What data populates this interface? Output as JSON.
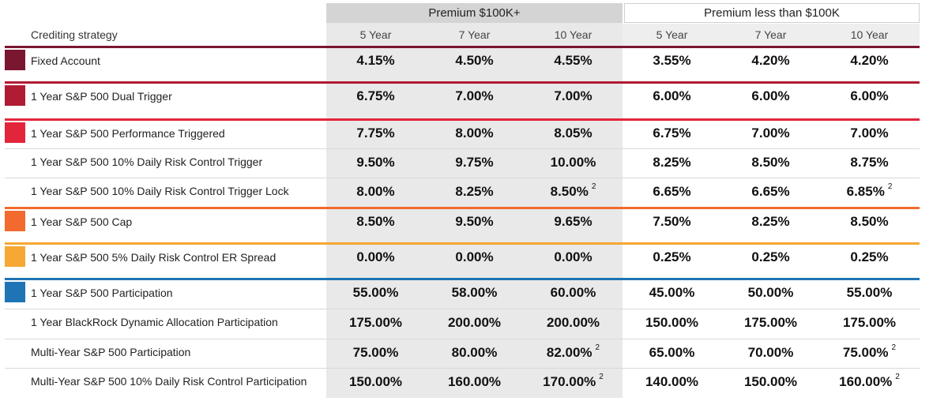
{
  "groups": [
    {
      "label": "Premium $100K+"
    },
    {
      "label": "Premium less than $100K"
    }
  ],
  "strategy_header": "Crediting strategy",
  "columns": [
    "5 Year",
    "7 Year",
    "10 Year",
    "5 Year",
    "7 Year",
    "10 Year"
  ],
  "colors": {
    "fixed": "#7b1630",
    "dual": "#b01c34",
    "performance": "#e3253b",
    "cap": "#f26a2e",
    "spread": "#f7a734",
    "participation": "#1f74b6"
  },
  "rows": [
    {
      "label": "Fixed Account",
      "values": [
        "4.15%",
        "4.50%",
        "4.55%",
        "3.55%",
        "4.20%",
        "4.20%"
      ],
      "notes": [
        "",
        "",
        "",
        "",
        "",
        ""
      ]
    },
    {
      "label": "1 Year S&P 500 Dual Trigger",
      "values": [
        "6.75%",
        "7.00%",
        "7.00%",
        "6.00%",
        "6.00%",
        "6.00%"
      ],
      "notes": [
        "",
        "",
        "",
        "",
        "",
        ""
      ]
    },
    {
      "label": "1 Year S&P 500 Performance Triggered",
      "values": [
        "7.75%",
        "8.00%",
        "8.05%",
        "6.75%",
        "7.00%",
        "7.00%"
      ],
      "notes": [
        "",
        "",
        "",
        "",
        "",
        ""
      ]
    },
    {
      "label": "1 Year S&P 500 10% Daily Risk Control Trigger",
      "values": [
        "9.50%",
        "9.75%",
        "10.00%",
        "8.25%",
        "8.50%",
        "8.75%"
      ],
      "notes": [
        "",
        "",
        "",
        "",
        "",
        ""
      ]
    },
    {
      "label": "1 Year S&P 500 10% Daily Risk Control Trigger Lock",
      "values": [
        "8.00%",
        "8.25%",
        "8.50%",
        "6.65%",
        "6.65%",
        "6.85%"
      ],
      "notes": [
        "",
        "",
        "2",
        "",
        "",
        "2"
      ]
    },
    {
      "label": "1 Year S&P 500 Cap",
      "values": [
        "8.50%",
        "9.50%",
        "9.65%",
        "7.50%",
        "8.25%",
        "8.50%"
      ],
      "notes": [
        "",
        "",
        "",
        "",
        "",
        ""
      ]
    },
    {
      "label": "1 Year S&P 500 5% Daily Risk Control ER Spread",
      "values": [
        "0.00%",
        "0.00%",
        "0.00%",
        "0.25%",
        "0.25%",
        "0.25%"
      ],
      "notes": [
        "",
        "",
        "",
        "",
        "",
        ""
      ]
    },
    {
      "label": "1 Year S&P 500 Participation",
      "values": [
        "55.00%",
        "58.00%",
        "60.00%",
        "45.00%",
        "50.00%",
        "55.00%"
      ],
      "notes": [
        "",
        "",
        "",
        "",
        "",
        ""
      ]
    },
    {
      "label": "1 Year BlackRock Dynamic Allocation Participation",
      "values": [
        "175.00%",
        "200.00%",
        "200.00%",
        "150.00%",
        "175.00%",
        "175.00%"
      ],
      "notes": [
        "",
        "",
        "",
        "",
        "",
        ""
      ]
    },
    {
      "label": "Multi-Year S&P 500 Participation",
      "values": [
        "75.00%",
        "80.00%",
        "82.00%",
        "65.00%",
        "70.00%",
        "75.00%"
      ],
      "notes": [
        "",
        "",
        "2",
        "",
        "",
        "2"
      ]
    },
    {
      "label": "Multi-Year S&P 500 10% Daily Risk Control Participation",
      "values": [
        "150.00%",
        "160.00%",
        "170.00%",
        "140.00%",
        "150.00%",
        "160.00%"
      ],
      "notes": [
        "",
        "",
        "2",
        "",
        "",
        "2"
      ]
    }
  ]
}
